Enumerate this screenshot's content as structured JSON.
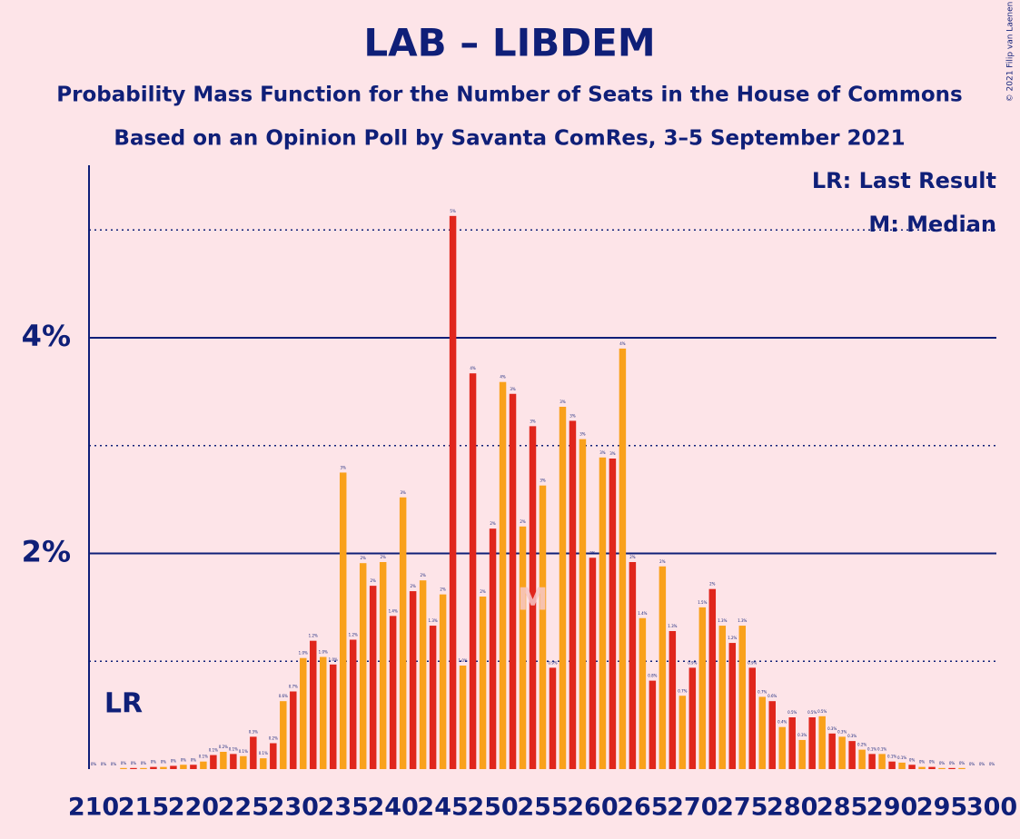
{
  "chart_data": {
    "type": "bar",
    "title": "LAB – LIBDEM",
    "subtitle": "Probability Mass Function for the Number of Seats in the House of Commons",
    "subtitle2": "Based on an Opinion Poll by Savanta ComRes, 3–5 September 2021",
    "copyright": "© 2021 Filip van Laenen",
    "legend": [
      "LR: Last Result",
      "M: Median"
    ],
    "last_result": {
      "x": 213,
      "label": "LR"
    },
    "median": {
      "x": 254,
      "label": "M"
    },
    "colors": [
      "#e0261c",
      "#f9a11b"
    ],
    "x": [
      210,
      211,
      212,
      213,
      214,
      215,
      216,
      217,
      218,
      219,
      220,
      221,
      222,
      223,
      224,
      225,
      226,
      227,
      228,
      229,
      230,
      231,
      232,
      233,
      234,
      235,
      236,
      237,
      238,
      239,
      240,
      241,
      242,
      243,
      244,
      245,
      246,
      247,
      248,
      249,
      250,
      251,
      252,
      253,
      254,
      255,
      256,
      257,
      258,
      259,
      260,
      261,
      262,
      263,
      264,
      265,
      266,
      267,
      268,
      269,
      270,
      271,
      272,
      273,
      274,
      275,
      276,
      277,
      278,
      279,
      280,
      281,
      282,
      283,
      284,
      285,
      286,
      287,
      288,
      289,
      290,
      291,
      292,
      293,
      294,
      295,
      296,
      297,
      298,
      299,
      300
    ],
    "values": [
      0,
      0,
      0,
      0.01,
      0.01,
      0.01,
      0.02,
      0.02,
      0.03,
      0.04,
      0.04,
      0.07,
      0.13,
      0.16,
      0.14,
      0.12,
      0.3,
      0.1,
      0.24,
      0.63,
      0.72,
      1.03,
      1.19,
      1.04,
      0.97,
      2.75,
      1.2,
      1.91,
      1.7,
      1.92,
      1.42,
      2.52,
      1.65,
      1.75,
      1.33,
      1.62,
      5.13,
      0.96,
      3.67,
      1.6,
      2.23,
      3.59,
      3.48,
      2.25,
      3.18,
      2.63,
      0.94,
      3.36,
      3.23,
      3.06,
      1.96,
      2.89,
      2.88,
      3.9,
      1.92,
      1.4,
      0.82,
      1.88,
      1.28,
      0.68,
      0.94,
      1.5,
      1.67,
      1.33,
      1.17,
      1.33,
      0.94,
      0.67,
      0.63,
      0.39,
      0.48,
      0.27,
      0.48,
      0.49,
      0.33,
      0.3,
      0.26,
      0.18,
      0.14,
      0.14,
      0.07,
      0.06,
      0.04,
      0.02,
      0.02,
      0.01,
      0.01,
      0.01,
      0,
      0,
      0
    ],
    "value_labels": [
      "0%",
      "0%",
      "0%",
      "0%",
      "0%",
      "0%",
      "0%",
      "0%",
      "0%",
      "0%",
      "0%",
      "0.1%",
      "0.1%",
      "0.2%",
      "0.1%",
      "0.1%",
      "0.3%",
      "0.1%",
      "0.2%",
      "0.6%",
      "0.7%",
      "1.0%",
      "1.2%",
      "1.0%",
      "1.0%",
      "3%",
      "1.2%",
      "2%",
      "2%",
      "2%",
      "1.4%",
      "3%",
      "2%",
      "2%",
      "1.3%",
      "2%",
      "5%",
      "1.0%",
      "4%",
      "2%",
      "2%",
      "4%",
      "3%",
      "2%",
      "3%",
      "3%",
      "0.9%",
      "3%",
      "3%",
      "3%",
      "2%",
      "3%",
      "3%",
      "4%",
      "2%",
      "1.4%",
      "0.8%",
      "2%",
      "1.3%",
      "0.7%",
      "0.9%",
      "1.5%",
      "2%",
      "1.3%",
      "1.2%",
      "1.3%",
      "0.9%",
      "0.7%",
      "0.6%",
      "0.4%",
      "0.5%",
      "0.3%",
      "0.5%",
      "0.5%",
      "0.3%",
      "0.3%",
      "0.3%",
      "0.2%",
      "0.1%",
      "0.1%",
      "0.1%",
      "0.1%",
      "0%",
      "0%",
      "0%",
      "0%",
      "0%",
      "0%",
      "0%",
      "0%",
      "0%"
    ],
    "xlim": [
      210,
      300
    ],
    "xticks": [
      210,
      215,
      220,
      225,
      230,
      235,
      240,
      245,
      250,
      255,
      260,
      265,
      270,
      275,
      280,
      285,
      290,
      295,
      300
    ],
    "ylim": [
      0,
      5.6
    ],
    "yticks": [
      {
        "value": 2,
        "label": "2%"
      },
      {
        "value": 4,
        "label": "4%"
      }
    ],
    "minor_yticks": [
      1,
      3,
      5
    ],
    "grid": true
  }
}
